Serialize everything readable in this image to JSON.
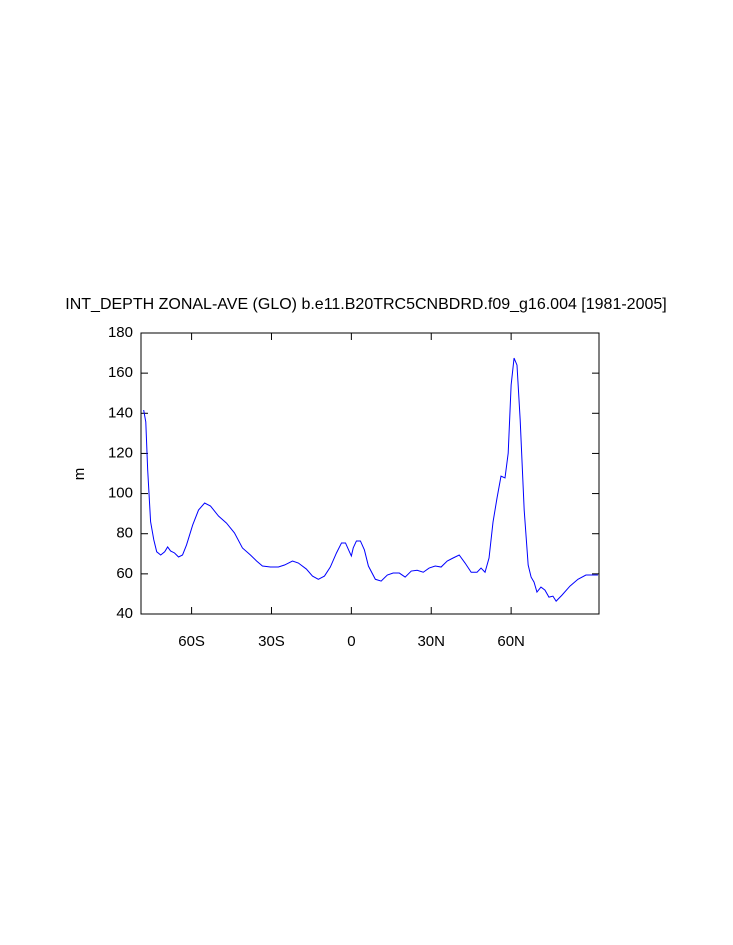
{
  "chart_data": {
    "type": "line",
    "title": "INT_DEPTH ZONAL-AVE (GLO) b.e11.B20TRC5CNBDRD.f09_g16.004 [1981-2005]",
    "y_label": "m",
    "xlim": [
      -79,
      93
    ],
    "ylim": [
      40,
      180
    ],
    "xticks": [
      {
        "value": -60,
        "label": "60S"
      },
      {
        "value": -30,
        "label": "30S"
      },
      0,
      {
        "value": 30,
        "label": "30N"
      },
      {
        "value": 60,
        "label": "60N"
      }
    ],
    "yticks": [
      40,
      60,
      80,
      100,
      120,
      140,
      160,
      180
    ],
    "series": [
      {
        "color": "#0000ff",
        "x": [
          -78,
          -77.2,
          -76.5,
          -75.4,
          -74.2,
          -73.1,
          -71.6,
          -70.1,
          -69,
          -67.9,
          -66.4,
          -64.9,
          -63.4,
          -61.9,
          -59.6,
          -57.4,
          -55.1,
          -52.9,
          -49.9,
          -46.9,
          -43.9,
          -40.9,
          -37.9,
          -35.6,
          -33.4,
          -30.4,
          -27.4,
          -25.1,
          -22.1,
          -19.9,
          -16.9,
          -14.6,
          -12.4,
          -10.1,
          -7.9,
          -5.6,
          -3.7,
          -2.2,
          -0.7,
          0,
          0.7,
          1.9,
          3.4,
          4.9,
          6.4,
          9,
          11.2,
          13.5,
          15.7,
          18,
          20.2,
          22.5,
          24.7,
          27,
          29.2,
          31.5,
          33.7,
          36,
          38.2,
          40.5,
          42.7,
          45,
          47.2,
          48.7,
          50.2,
          51.7,
          53.2,
          54.7,
          56.2,
          57.7,
          58.9,
          60,
          61.1,
          62.2,
          63.4,
          64.9,
          66.4,
          67.5,
          68.6,
          69.7,
          71.2,
          72.7,
          74.2,
          75.7,
          76.9,
          79.1,
          82.1,
          85.1,
          88.1,
          92.6
        ],
        "values": [
          141.6,
          135.7,
          112,
          86,
          77,
          71,
          69.4,
          71,
          73.4,
          71.4,
          70.4,
          68.4,
          69.4,
          74.4,
          84.3,
          91.8,
          95.3,
          93.8,
          88.8,
          85.3,
          80.4,
          72.9,
          69.4,
          66.4,
          63.9,
          63.4,
          63.4,
          64.4,
          66.4,
          65.4,
          62.4,
          58.9,
          57.3,
          58.9,
          63.4,
          70.4,
          75.4,
          75.4,
          70.9,
          68.9,
          72.9,
          76.4,
          76.4,
          71.9,
          63.9,
          57.3,
          56.4,
          59.4,
          60.4,
          60.4,
          58.4,
          61.4,
          61.8,
          60.8,
          62.9,
          63.9,
          63.4,
          66.4,
          67.9,
          69.4,
          65.4,
          60.8,
          60.8,
          62.9,
          60.8,
          67.9,
          85.8,
          97.8,
          108.7,
          107.8,
          120.2,
          154.1,
          167.5,
          164,
          136.7,
          91.8,
          64.4,
          58.4,
          55.9,
          50.9,
          53.4,
          51.9,
          48.4,
          48.9,
          46.4,
          49.4,
          53.9,
          57.3,
          59.4,
          59.4
        ]
      }
    ]
  }
}
